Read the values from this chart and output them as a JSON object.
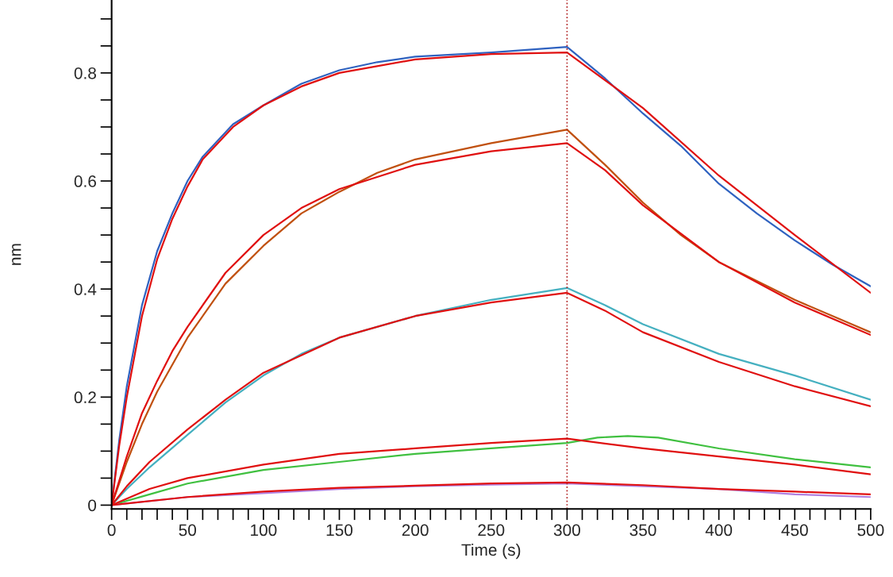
{
  "chart_data": {
    "type": "line",
    "xlabel": "Time (s)",
    "ylabel": "nm",
    "xlim": [
      0,
      500
    ],
    "ylim": [
      -0.007,
      0.935
    ],
    "xticks": [
      0,
      {
        "value": 10,
        "label": null
      },
      {
        "value": 20,
        "label": null
      },
      {
        "value": 30,
        "label": null
      },
      {
        "value": 40,
        "label": null
      },
      50,
      {
        "value": 60,
        "label": null
      },
      {
        "value": 70,
        "label": null
      },
      {
        "value": 80,
        "label": null
      },
      {
        "value": 90,
        "label": null
      },
      100,
      {
        "value": 110,
        "label": null
      },
      {
        "value": 120,
        "label": null
      },
      {
        "value": 130,
        "label": null
      },
      {
        "value": 140,
        "label": null
      },
      150,
      {
        "value": 160,
        "label": null
      },
      {
        "value": 170,
        "label": null
      },
      {
        "value": 180,
        "label": null
      },
      {
        "value": 190,
        "label": null
      },
      200,
      {
        "value": 210,
        "label": null
      },
      {
        "value": 220,
        "label": null
      },
      {
        "value": 230,
        "label": null
      },
      {
        "value": 240,
        "label": null
      },
      250,
      {
        "value": 260,
        "label": null
      },
      {
        "value": 270,
        "label": null
      },
      {
        "value": 280,
        "label": null
      },
      {
        "value": 290,
        "label": null
      },
      300,
      {
        "value": 310,
        "label": null
      },
      {
        "value": 320,
        "label": null
      },
      {
        "value": 330,
        "label": null
      },
      {
        "value": 340,
        "label": null
      },
      350,
      {
        "value": 360,
        "label": null
      },
      {
        "value": 370,
        "label": null
      },
      {
        "value": 380,
        "label": null
      },
      {
        "value": 390,
        "label": null
      },
      400,
      {
        "value": 410,
        "label": null
      },
      {
        "value": 420,
        "label": null
      },
      {
        "value": 430,
        "label": null
      },
      {
        "value": 440,
        "label": null
      },
      450,
      {
        "value": 460,
        "label": null
      },
      {
        "value": 470,
        "label": null
      },
      {
        "value": 480,
        "label": null
      },
      {
        "value": 490,
        "label": null
      },
      500
    ],
    "yticks": [
      0,
      {
        "value": 0.05,
        "label": null
      },
      {
        "value": 0.1,
        "label": null
      },
      {
        "value": 0.15,
        "label": null
      },
      0.2,
      {
        "value": 0.25,
        "label": null
      },
      {
        "value": 0.3,
        "label": null
      },
      {
        "value": 0.35,
        "label": null
      },
      0.4,
      {
        "value": 0.45,
        "label": null
      },
      {
        "value": 0.5,
        "label": null
      },
      {
        "value": 0.55,
        "label": null
      },
      0.6,
      {
        "value": 0.65,
        "label": null
      },
      {
        "value": 0.7,
        "label": null
      },
      {
        "value": 0.75,
        "label": null
      },
      0.8,
      {
        "value": 0.85,
        "label": null
      },
      {
        "value": 0.9,
        "label": null
      }
    ],
    "grid": false,
    "legend": false,
    "marker": "none",
    "line_style": "solid",
    "ref_lines": [
      {
        "axis": "x",
        "value": 300,
        "color": "#b02020",
        "line_style": "dotted"
      }
    ],
    "series": [
      {
        "color": "#2f62c0",
        "x": [
          0,
          5,
          10,
          20,
          30,
          40,
          50,
          60,
          80,
          100,
          125,
          150,
          175,
          200,
          250,
          300,
          310,
          325,
          350,
          375,
          400,
          425,
          450,
          475,
          500
        ],
        "values": [
          0,
          0.12,
          0.22,
          0.37,
          0.47,
          0.54,
          0.6,
          0.645,
          0.705,
          0.74,
          0.78,
          0.805,
          0.82,
          0.83,
          0.838,
          0.848,
          0.825,
          0.79,
          0.725,
          0.665,
          0.595,
          0.54,
          0.49,
          0.445,
          0.405
        ]
      },
      {
        "color": "#c0500f",
        "x": [
          0,
          10,
          20,
          30,
          40,
          50,
          75,
          100,
          125,
          150,
          175,
          200,
          250,
          300,
          325,
          350,
          375,
          400,
          450,
          500
        ],
        "values": [
          0,
          0.08,
          0.15,
          0.21,
          0.26,
          0.31,
          0.41,
          0.48,
          0.54,
          0.58,
          0.615,
          0.64,
          0.67,
          0.695,
          0.63,
          0.56,
          0.5,
          0.45,
          0.38,
          0.32
        ]
      },
      {
        "color": "#45b0c0",
        "x": [
          0,
          10,
          25,
          50,
          75,
          100,
          125,
          150,
          200,
          250,
          300,
          325,
          350,
          400,
          450,
          500
        ],
        "values": [
          0,
          0.03,
          0.07,
          0.13,
          0.19,
          0.24,
          0.28,
          0.31,
          0.35,
          0.38,
          0.402,
          0.37,
          0.335,
          0.28,
          0.24,
          0.195
        ]
      },
      {
        "color": "#40c040",
        "x": [
          0,
          25,
          50,
          100,
          150,
          200,
          250,
          300,
          320,
          340,
          360,
          400,
          450,
          500
        ],
        "values": [
          0,
          0.02,
          0.04,
          0.065,
          0.08,
          0.095,
          0.105,
          0.115,
          0.125,
          0.128,
          0.125,
          0.105,
          0.085,
          0.07
        ]
      },
      {
        "color": "#b080e0",
        "x": [
          0,
          50,
          100,
          150,
          200,
          250,
          300,
          350,
          400,
          450,
          500
        ],
        "values": [
          0,
          0.015,
          0.022,
          0.03,
          0.035,
          0.038,
          0.04,
          0.035,
          0.03,
          0.02,
          0.015
        ]
      },
      {
        "color": "#e01010",
        "x": [
          0,
          5,
          10,
          20,
          30,
          40,
          50,
          60,
          80,
          100,
          125,
          150,
          200,
          250,
          300,
          350,
          400,
          450,
          500
        ],
        "values": [
          0,
          0.11,
          0.2,
          0.35,
          0.455,
          0.53,
          0.59,
          0.64,
          0.7,
          0.74,
          0.775,
          0.8,
          0.825,
          0.835,
          0.838,
          0.735,
          0.61,
          0.5,
          0.393
        ]
      },
      {
        "color": "#e01010",
        "x": [
          0,
          10,
          20,
          30,
          40,
          50,
          75,
          100,
          125,
          150,
          200,
          250,
          300,
          325,
          350,
          400,
          450,
          500
        ],
        "values": [
          0,
          0.09,
          0.17,
          0.23,
          0.285,
          0.33,
          0.43,
          0.5,
          0.55,
          0.585,
          0.63,
          0.655,
          0.67,
          0.62,
          0.555,
          0.45,
          0.375,
          0.315
        ]
      },
      {
        "color": "#e01010",
        "x": [
          0,
          10,
          25,
          50,
          75,
          100,
          150,
          200,
          250,
          300,
          325,
          350,
          400,
          450,
          500
        ],
        "values": [
          0,
          0.035,
          0.08,
          0.14,
          0.195,
          0.245,
          0.31,
          0.35,
          0.375,
          0.393,
          0.36,
          0.32,
          0.265,
          0.22,
          0.183
        ]
      },
      {
        "color": "#e01010",
        "x": [
          0,
          25,
          50,
          100,
          150,
          200,
          250,
          300,
          350,
          400,
          450,
          500
        ],
        "values": [
          0,
          0.03,
          0.05,
          0.075,
          0.095,
          0.105,
          0.115,
          0.123,
          0.105,
          0.09,
          0.075,
          0.057
        ]
      },
      {
        "color": "#e01010",
        "x": [
          0,
          50,
          100,
          150,
          200,
          250,
          300,
          350,
          400,
          450,
          500
        ],
        "values": [
          0,
          0.015,
          0.025,
          0.032,
          0.036,
          0.04,
          0.042,
          0.037,
          0.03,
          0.025,
          0.02
        ]
      }
    ]
  }
}
